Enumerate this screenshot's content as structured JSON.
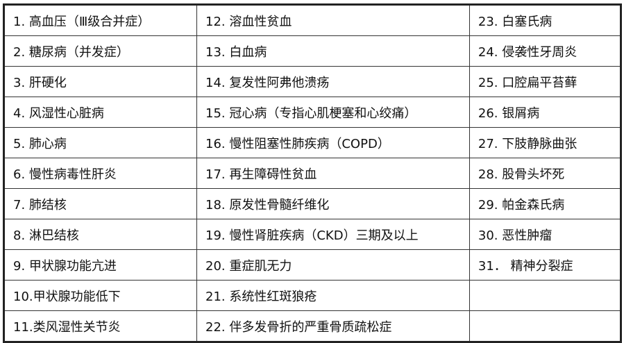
{
  "columns": [
    [
      "1. 高血压（Ⅲ级合并症）",
      "2. 糖尿病（并发症）",
      "3. 肝硬化",
      "4. 风湿性心脏病",
      "5. 肺心病",
      "6. 慢性病毒性肝炎",
      "7. 肺结核",
      "8. 淋巴结核",
      "9. 甲状腺功能亢进",
      "10.甲状腺功能低下",
      "11.类风湿性关节炎"
    ],
    [
      "12. 溶血性贫血",
      "13. 白血病",
      "14. 复发性阿弗他溃疡",
      "15. 冠心病（专指心肌梗塞和心绞痛）",
      "16. 慢性阻塞性肺疾病（COPD）",
      "17. 再生障碍性贫血",
      "18. 原发性骨髓纤维化",
      "19. 慢性肾脏疾病（CKD）三期及以上",
      "20. 重症肌无力",
      "21. 系统性红斑狼疮",
      "22. 伴多发骨折的严重骨质疏松症"
    ],
    [
      "23. 白塞氏病",
      "24. 侵袭性牙周炎",
      "25. 口腔扁平苔藓",
      "26. 银屑病",
      "27. 下肢静脉曲张",
      "28. 股骨头坏死",
      "29. 帕金森氏病",
      "30. 恶性肿瘤",
      "31． 精神分裂症",
      "",
      ""
    ]
  ]
}
